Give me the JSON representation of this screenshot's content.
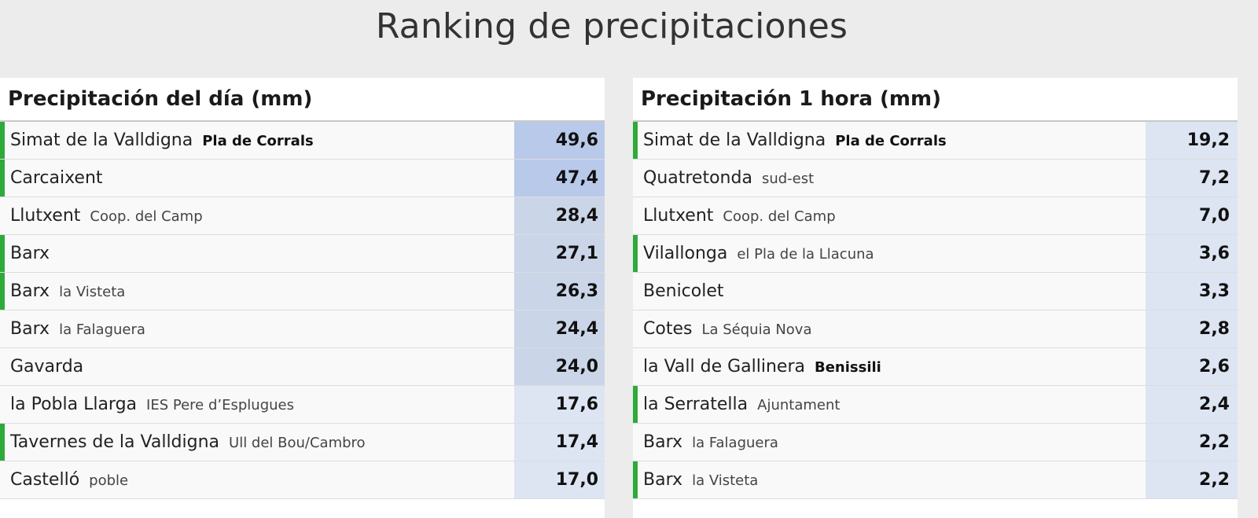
{
  "title": "Ranking de precipitaciones",
  "colors": {
    "active_marker": "#2eaa3a",
    "value_high": "#b8c9ea",
    "value_mid": "#cad5e8",
    "value_low": "#dde5f3"
  },
  "daily": {
    "header": "Precipitación del día (mm)",
    "rows": [
      {
        "town": "Simat de la Valldigna",
        "station": "Pla de Corrals",
        "station_bold": true,
        "value": "49,6",
        "marker": true,
        "level": "high"
      },
      {
        "town": "Carcaixent",
        "station": "",
        "station_bold": false,
        "value": "47,4",
        "marker": true,
        "level": "high"
      },
      {
        "town": "Llutxent",
        "station": "Coop. del Camp",
        "station_bold": false,
        "value": "28,4",
        "marker": false,
        "level": "mid"
      },
      {
        "town": "Barx",
        "station": "",
        "station_bold": false,
        "value": "27,1",
        "marker": true,
        "level": "mid"
      },
      {
        "town": "Barx",
        "station": "la Visteta",
        "station_bold": false,
        "value": "26,3",
        "marker": true,
        "level": "mid"
      },
      {
        "town": "Barx",
        "station": "la Falaguera",
        "station_bold": false,
        "value": "24,4",
        "marker": false,
        "level": "mid"
      },
      {
        "town": "Gavarda",
        "station": "",
        "station_bold": false,
        "value": "24,0",
        "marker": false,
        "level": "mid"
      },
      {
        "town": "la Pobla Llarga",
        "station": "IES Pere d’Esplugues",
        "station_bold": false,
        "value": "17,6",
        "marker": false,
        "level": "low"
      },
      {
        "town": "Tavernes de la Valldigna",
        "station": "Ull del Bou/Cambro",
        "station_bold": false,
        "value": "17,4",
        "marker": true,
        "level": "low"
      },
      {
        "town": "Castelló",
        "station": "poble",
        "station_bold": false,
        "value": "17,0",
        "marker": false,
        "level": "low"
      }
    ]
  },
  "hourly": {
    "header": "Precipitación 1 hora (mm)",
    "rows": [
      {
        "town": "Simat de la Valldigna",
        "station": "Pla de Corrals",
        "station_bold": true,
        "value": "19,2",
        "marker": true,
        "level": "low"
      },
      {
        "town": "Quatretonda",
        "station": "sud-est",
        "station_bold": false,
        "value": "7,2",
        "marker": false,
        "level": "low"
      },
      {
        "town": "Llutxent",
        "station": "Coop. del Camp",
        "station_bold": false,
        "value": "7,0",
        "marker": false,
        "level": "low"
      },
      {
        "town": "Vilallonga",
        "station": "el Pla de la Llacuna",
        "station_bold": false,
        "value": "3,6",
        "marker": true,
        "level": "low"
      },
      {
        "town": "Benicolet",
        "station": "",
        "station_bold": false,
        "value": "3,3",
        "marker": false,
        "level": "low"
      },
      {
        "town": "Cotes",
        "station": "La Séquia Nova",
        "station_bold": false,
        "value": "2,8",
        "marker": false,
        "level": "low"
      },
      {
        "town": "la Vall de Gallinera",
        "station": "Benissili",
        "station_bold": true,
        "value": "2,6",
        "marker": false,
        "level": "low"
      },
      {
        "town": "la Serratella",
        "station": "Ajuntament",
        "station_bold": false,
        "value": "2,4",
        "marker": true,
        "level": "low"
      },
      {
        "town": "Barx",
        "station": "la Falaguera",
        "station_bold": false,
        "value": "2,2",
        "marker": false,
        "level": "low"
      },
      {
        "town": "Barx",
        "station": "la Visteta",
        "station_bold": false,
        "value": "2,2",
        "marker": true,
        "level": "low"
      }
    ]
  }
}
